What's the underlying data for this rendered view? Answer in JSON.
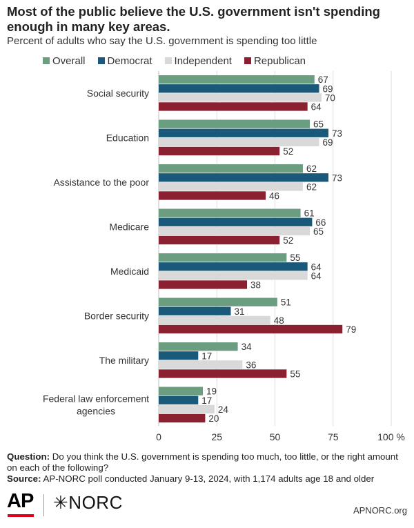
{
  "title": "Most of the public believe the U.S. government isn't spending enough in many key areas.",
  "subtitle": "Percent of adults who say the U.S. government is spending too little",
  "legend": [
    {
      "label": "Overall",
      "color": "#6b9e81"
    },
    {
      "label": "Democrat",
      "color": "#1a5979"
    },
    {
      "label": "Independent",
      "color": "#d9d9d9"
    },
    {
      "label": "Republican",
      "color": "#8b2130"
    }
  ],
  "chart_data": {
    "type": "bar",
    "orientation": "horizontal",
    "categories": [
      "Social security",
      "Education",
      "Assistance to the poor",
      "Medicare",
      "Medicaid",
      "Border security",
      "The military",
      "Federal law enforcement agencies"
    ],
    "category_lines": [
      [
        "Social security"
      ],
      [
        "Education"
      ],
      [
        "Assistance to the poor"
      ],
      [
        "Medicare"
      ],
      [
        "Medicaid"
      ],
      [
        "Border security"
      ],
      [
        "The military"
      ],
      [
        "Federal law enforcement",
        "agencies"
      ]
    ],
    "series": [
      {
        "name": "Overall",
        "color": "#6b9e81",
        "values": [
          67,
          65,
          62,
          61,
          55,
          51,
          34,
          19
        ]
      },
      {
        "name": "Democrat",
        "color": "#1a5979",
        "values": [
          69,
          73,
          73,
          66,
          64,
          31,
          17,
          17
        ]
      },
      {
        "name": "Independent",
        "color": "#d9d9d9",
        "values": [
          70,
          69,
          62,
          65,
          64,
          48,
          36,
          24
        ]
      },
      {
        "name": "Republican",
        "color": "#8b2130",
        "values": [
          64,
          52,
          46,
          52,
          38,
          79,
          55,
          20
        ]
      }
    ],
    "xlim": [
      0,
      100
    ],
    "xticks": [
      0,
      25,
      50,
      75,
      100
    ],
    "xtick_labels": [
      "0",
      "25",
      "50",
      "75",
      "100 %"
    ],
    "grid": true,
    "legend_position": "top"
  },
  "footnote": {
    "question_label": "Question:",
    "question_text": "Do you think the U.S. government is spending too much, too little, or the right amount on each of the following?",
    "source_label": "Source:",
    "source_text": "AP-NORC poll conducted January 9-13, 2024, with 1,174 adults age 18 and older"
  },
  "logos": {
    "ap": "AP",
    "norc_mark": "✳",
    "norc_text": "NORC"
  },
  "site": "APNORC.org"
}
